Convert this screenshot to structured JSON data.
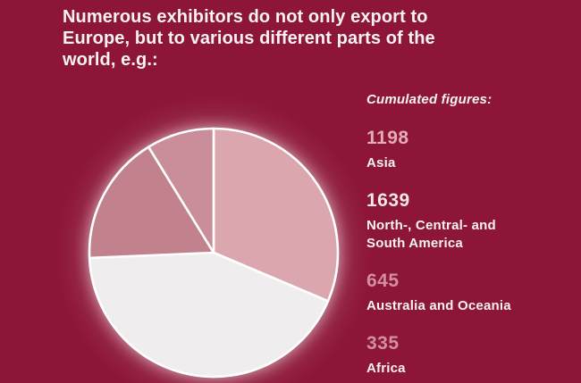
{
  "title": {
    "lines": [
      "Numerous exhibitors do not only export to",
      "Europe, but to various different parts of the",
      "world, e.g.:"
    ]
  },
  "legend": {
    "heading": "Cumulated figures:",
    "items": [
      {
        "value": "1198",
        "label": "Asia"
      },
      {
        "value": "1639",
        "label": "North-, Central- and\nSouth America"
      },
      {
        "value": "645",
        "label": "Australia and Oceania"
      },
      {
        "value": "335",
        "label": "Africa"
      }
    ],
    "value_colors": [
      "#e3adb7",
      "#f2e7e9",
      "#d18fa0",
      "#d18fa0"
    ]
  },
  "colors": {
    "background": "#8d1537",
    "text": "#f6f2f3",
    "slice_stroke": "#ffffff"
  },
  "chart_data": {
    "type": "pie",
    "title": "Cumulated figures:",
    "labels": [
      "Asia",
      "North-, Central- and South America",
      "Australia and Oceania",
      "Africa"
    ],
    "values": [
      1198,
      1639,
      645,
      335
    ],
    "colors": [
      "#dba6ad",
      "#efedee",
      "#c1828e",
      "#c98e99"
    ],
    "start_angle_deg": 0,
    "direction": "clockwise",
    "legend_position": "right",
    "total": 3817
  }
}
